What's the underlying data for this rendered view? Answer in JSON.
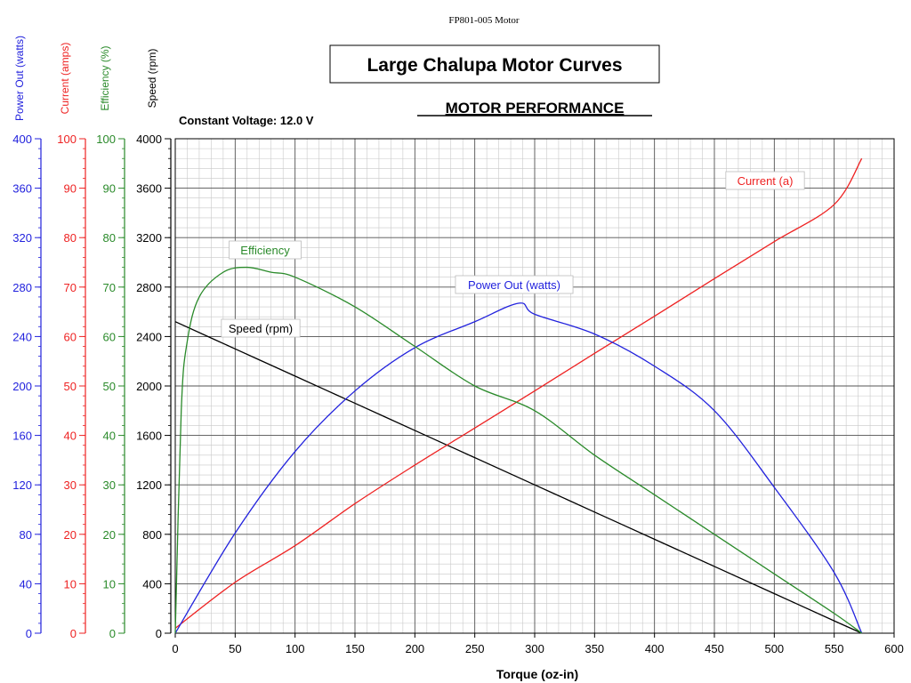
{
  "doc_label": "FP801-005 Motor",
  "title": "Large Chalupa Motor Curves",
  "chart_data": {
    "type": "line",
    "subtitle": "MOTOR PERFORMANCE",
    "voltage_label": "Constant Voltage: 12.0 V",
    "xlabel": "Torque (oz-in)",
    "xlim": [
      0,
      600
    ],
    "x_ticks": [
      0,
      50,
      100,
      150,
      200,
      250,
      300,
      350,
      400,
      450,
      500,
      550,
      600
    ],
    "grid": true,
    "y_axes": [
      {
        "label": "Power Out (watts)",
        "color": "#2222dd",
        "lim": [
          0,
          400
        ],
        "ticks": [
          0,
          40,
          80,
          120,
          160,
          200,
          240,
          280,
          320,
          360,
          400
        ]
      },
      {
        "label": "Current (amps)",
        "color": "#ee2222",
        "lim": [
          0,
          100
        ],
        "ticks": [
          0,
          10,
          20,
          30,
          40,
          50,
          60,
          70,
          80,
          90,
          100
        ]
      },
      {
        "label": "Efficiency (%)",
        "color": "#2a8a2a",
        "lim": [
          0,
          100
        ],
        "ticks": [
          0,
          10,
          20,
          30,
          40,
          50,
          60,
          70,
          80,
          90,
          100
        ]
      },
      {
        "label": "Speed (rpm)",
        "color": "#000000",
        "lim": [
          0,
          4000
        ],
        "ticks": [
          0,
          400,
          800,
          1200,
          1600,
          2000,
          2400,
          2800,
          3200,
          3600,
          4000
        ]
      }
    ],
    "series": [
      {
        "name": "Speed (rpm)",
        "color": "#000000",
        "axis": 3,
        "x": [
          0,
          50,
          100,
          150,
          200,
          250,
          300,
          350,
          400,
          450,
          500,
          550,
          573
        ],
        "y": [
          2520,
          2300,
          2080,
          1860,
          1640,
          1420,
          1200,
          980,
          760,
          540,
          320,
          100,
          0
        ]
      },
      {
        "name": "Current (a)",
        "color": "#ee2222",
        "axis": 1,
        "x": [
          0,
          50,
          100,
          150,
          200,
          250,
          300,
          350,
          400,
          450,
          500,
          550,
          573
        ],
        "y": [
          1.0,
          10.3,
          17.7,
          26.2,
          34.0,
          41.5,
          49.0,
          56.6,
          64.1,
          71.7,
          79.2,
          86.7,
          96.0
        ]
      },
      {
        "name": "Power Out (watts)",
        "color": "#2222dd",
        "axis": 0,
        "x": [
          0,
          50,
          100,
          150,
          200,
          250,
          287,
          300,
          350,
          400,
          450,
          500,
          550,
          573
        ],
        "y": [
          0,
          81,
          147,
          196,
          231,
          252,
          267,
          258,
          242,
          216,
          180,
          118,
          49,
          0
        ]
      },
      {
        "name": "Efficiency",
        "color": "#2a8a2a",
        "axis": 2,
        "x": [
          0,
          5,
          10,
          20,
          40,
          60,
          80,
          100,
          150,
          200,
          250,
          300,
          350,
          400,
          450,
          500,
          550,
          573
        ],
        "y": [
          0,
          45,
          59,
          68,
          73,
          74,
          73,
          72,
          66,
          58,
          50,
          45,
          36,
          28,
          20,
          12,
          4,
          0
        ]
      }
    ]
  }
}
